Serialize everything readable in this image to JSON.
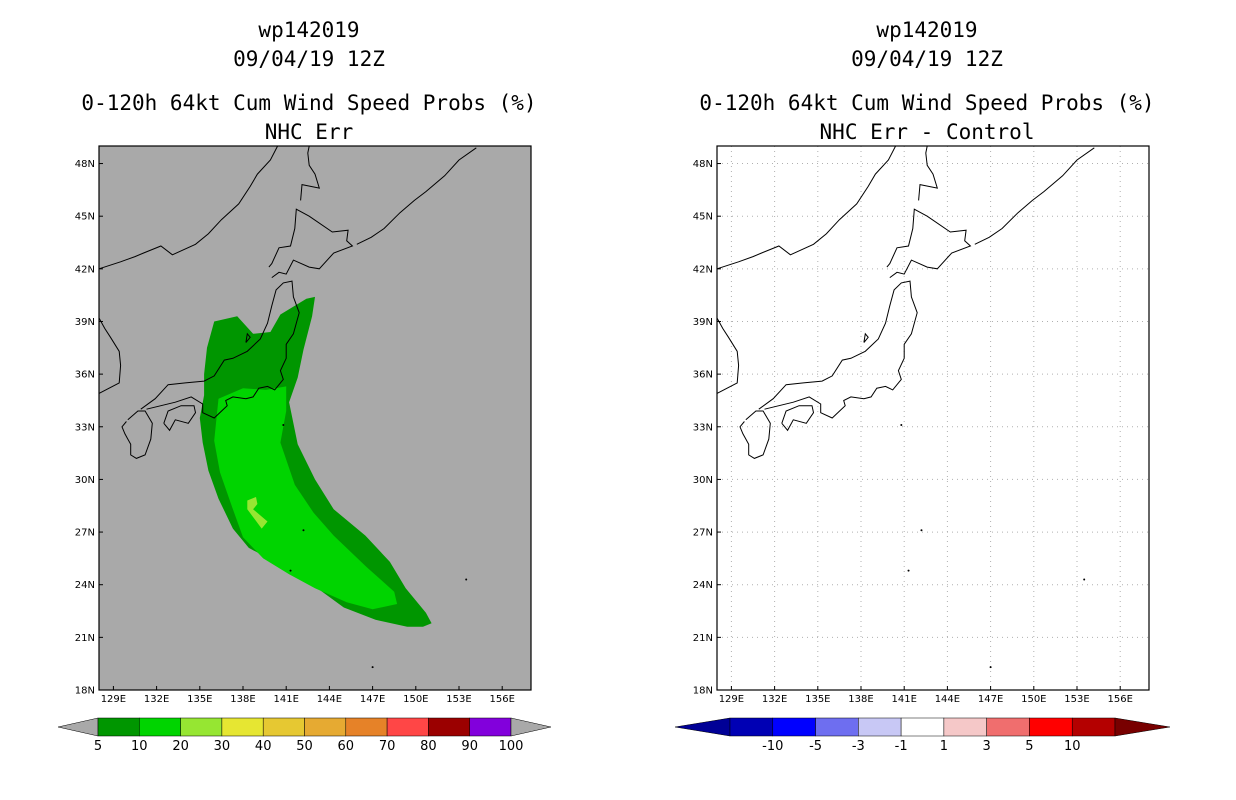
{
  "panels": [
    {
      "title_line1": "wp142019",
      "title_line2": "09/04/19 12Z",
      "title_line3": "0-120h 64kt Cum Wind Speed Probs (%)",
      "title_line4": "NHC Err",
      "background_color": "#a9a9a9"
    },
    {
      "title_line1": "wp142019",
      "title_line2": "09/04/19 12Z",
      "title_line3": "0-120h 64kt Cum Wind Speed Probs (%)",
      "title_line4": "NHC Err - Control",
      "background_color": "#ffffff"
    }
  ],
  "chart_data": [
    {
      "type": "heatmap",
      "title": "0-120h 64kt Cum Wind Speed Probs (%) NHC Err",
      "units": "%",
      "x_axis": {
        "range": [
          128,
          158
        ],
        "ticks": [
          129,
          132,
          135,
          138,
          141,
          144,
          147,
          150,
          153,
          156
        ],
        "tick_labels": [
          "129E",
          "132E",
          "135E",
          "138E",
          "141E",
          "144E",
          "147E",
          "150E",
          "153E",
          "156E"
        ]
      },
      "y_axis": {
        "range": [
          18,
          49
        ],
        "ticks": [
          18,
          21,
          24,
          27,
          30,
          33,
          36,
          39,
          42,
          45,
          48
        ],
        "tick_labels": [
          "18N",
          "21N",
          "24N",
          "27N",
          "30N",
          "33N",
          "36N",
          "39N",
          "42N",
          "45N",
          "48N"
        ]
      },
      "grid": false,
      "colorbar": {
        "labels": [
          "5",
          "10",
          "20",
          "30",
          "40",
          "50",
          "60",
          "70",
          "80",
          "90",
          "100"
        ],
        "colors": [
          "#009600",
          "#00d400",
          "#96e632",
          "#e6e632",
          "#e6c832",
          "#e6aa32",
          "#e68228",
          "#ff4646",
          "#9b0000",
          "#8200dc"
        ],
        "end_color": "#a9a9a9"
      },
      "probability_regions": [
        {
          "level": "5-10",
          "color": "#009600",
          "lonlat": [
            [
              136.0,
              39.0
            ],
            [
              137.6,
              39.3
            ],
            [
              138.7,
              38.3
            ],
            [
              139.9,
              38.4
            ],
            [
              140.6,
              39.4
            ],
            [
              142.4,
              40.3
            ],
            [
              143.0,
              40.4
            ],
            [
              142.8,
              39.3
            ],
            [
              142.2,
              37.4
            ],
            [
              141.8,
              35.8
            ],
            [
              141.2,
              34.4
            ],
            [
              141.8,
              32.0
            ],
            [
              143.0,
              30.0
            ],
            [
              144.3,
              28.3
            ],
            [
              146.5,
              26.8
            ],
            [
              148.2,
              25.3
            ],
            [
              149.3,
              23.8
            ],
            [
              150.7,
              22.4
            ],
            [
              151.1,
              21.8
            ],
            [
              150.5,
              21.6
            ],
            [
              149.4,
              21.6
            ],
            [
              147.2,
              22.0
            ],
            [
              145.0,
              22.7
            ],
            [
              143.0,
              23.9
            ],
            [
              141.4,
              24.7
            ],
            [
              140.0,
              25.4
            ],
            [
              138.4,
              26.1
            ],
            [
              137.3,
              27.2
            ],
            [
              136.3,
              28.9
            ],
            [
              135.6,
              30.5
            ],
            [
              135.2,
              32.1
            ],
            [
              135.0,
              33.5
            ],
            [
              135.3,
              34.8
            ],
            [
              135.3,
              36.0
            ],
            [
              135.5,
              37.5
            ]
          ]
        },
        {
          "level": "10-20",
          "color": "#00d400",
          "lonlat": [
            [
              136.3,
              34.6
            ],
            [
              138.0,
              35.2
            ],
            [
              139.6,
              35.1
            ],
            [
              141.0,
              35.3
            ],
            [
              141.0,
              33.9
            ],
            [
              140.6,
              32.1
            ],
            [
              141.6,
              29.7
            ],
            [
              142.9,
              28.1
            ],
            [
              144.3,
              26.8
            ],
            [
              146.6,
              25.0
            ],
            [
              148.5,
              23.6
            ],
            [
              148.7,
              22.9
            ],
            [
              147.0,
              22.6
            ],
            [
              145.2,
              23.0
            ],
            [
              143.0,
              23.8
            ],
            [
              141.2,
              24.6
            ],
            [
              139.4,
              25.5
            ],
            [
              138.0,
              26.7
            ],
            [
              137.3,
              28.3
            ],
            [
              136.4,
              30.4
            ],
            [
              136.0,
              32.2
            ]
          ]
        },
        {
          "level": "20-30",
          "color": "#96e632",
          "lonlat": [
            [
              138.3,
              28.8
            ],
            [
              138.9,
              29.0
            ],
            [
              139.0,
              28.6
            ],
            [
              138.7,
              28.3
            ],
            [
              139.7,
              27.6
            ],
            [
              139.3,
              27.2
            ],
            [
              138.3,
              28.3
            ]
          ]
        }
      ],
      "colorbar_pointer": "down"
    },
    {
      "type": "heatmap",
      "title": "0-120h 64kt Cum Wind Speed Probs (%) NHC Err - Control",
      "units": "%",
      "x_axis": {
        "range": [
          128,
          158
        ],
        "ticks": [
          129,
          132,
          135,
          138,
          141,
          144,
          147,
          150,
          153,
          156
        ],
        "tick_labels": [
          "129E",
          "132E",
          "135E",
          "138E",
          "141E",
          "144E",
          "147E",
          "150E",
          "153E",
          "156E"
        ]
      },
      "y_axis": {
        "range": [
          18,
          49
        ],
        "ticks": [
          18,
          21,
          24,
          27,
          30,
          33,
          36,
          39,
          42,
          45,
          48
        ],
        "tick_labels": [
          "18N",
          "21N",
          "24N",
          "27N",
          "30N",
          "33N",
          "36N",
          "39N",
          "42N",
          "45N",
          "48N"
        ]
      },
      "grid": true,
      "colorbar": {
        "labels": [
          "-10",
          "-5",
          "-3",
          "-1",
          "1",
          "3",
          "5",
          "10"
        ],
        "colors": [
          "#0000b4",
          "#0000ff",
          "#6e6ef0",
          "#c8c8f5",
          "#ffffff",
          "#f5c8c8",
          "#f06e6e",
          "#ff0000",
          "#b40000"
        ],
        "start_color": "#000096",
        "end_color": "#780000"
      },
      "probability_regions": []
    }
  ]
}
